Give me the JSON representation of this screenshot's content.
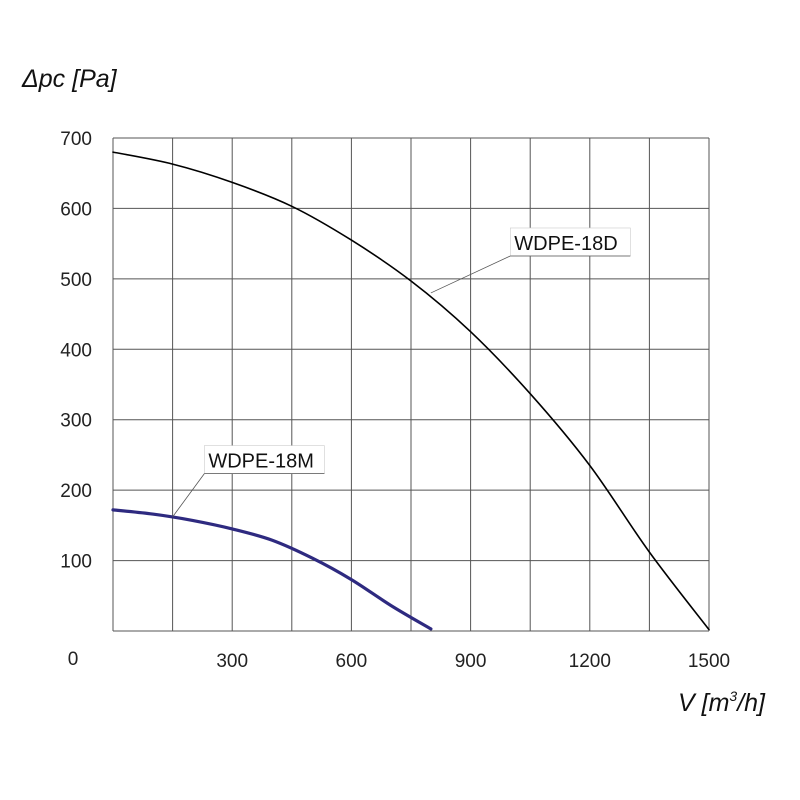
{
  "chart_data": {
    "type": "line",
    "ylabel": "Δpc [Pa]",
    "xlabel": {
      "prefix": "V [m",
      "sup": "3",
      "suffix": "/h]"
    },
    "xlim": [
      0,
      1500
    ],
    "ylim": [
      0,
      700
    ],
    "x_ticks": [
      300,
      600,
      900,
      1200,
      1500
    ],
    "y_ticks": [
      100,
      200,
      300,
      400,
      500,
      600,
      700
    ],
    "origin_label": "0",
    "grid": true,
    "series": [
      {
        "name": "WDPE-18D",
        "color": "#000000",
        "x": [
          0,
          150,
          300,
          450,
          600,
          750,
          900,
          1050,
          1200,
          1350,
          1500
        ],
        "y": [
          680,
          663,
          637,
          603,
          555,
          497,
          425,
          337,
          235,
          112,
          2
        ],
        "label_at": [
          1010,
          541
        ],
        "label_anchor_point": [
          800,
          480
        ]
      },
      {
        "name": "WDPE-18M",
        "color": "#2e2a80",
        "x": [
          0,
          100,
          200,
          300,
          400,
          500,
          600,
          700,
          800
        ],
        "y": [
          172,
          166,
          157,
          145,
          129,
          104,
          73,
          36,
          3
        ],
        "label_at": [
          240,
          232
        ],
        "label_anchor_point": [
          150,
          162
        ]
      }
    ]
  }
}
